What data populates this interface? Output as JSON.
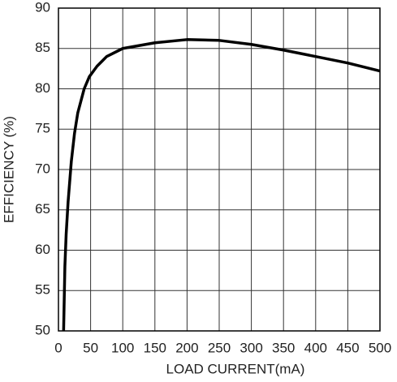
{
  "chart_data": {
    "type": "line",
    "x_label": "LOAD CURRENT(mA)",
    "y_label": "EFFICIENCY (%)",
    "xlim": [
      0,
      500
    ],
    "xticks": [
      0,
      50,
      100,
      150,
      200,
      250,
      300,
      350,
      400,
      450,
      500
    ],
    "ylim": [
      50,
      90
    ],
    "yticks": [
      50,
      55,
      60,
      65,
      70,
      75,
      80,
      85,
      90
    ],
    "grid": true,
    "series": [
      {
        "color": "#000000",
        "x": [
          8,
          10,
          12,
          15,
          20,
          25,
          30,
          40,
          48,
          60,
          75,
          100,
          150,
          200,
          250,
          300,
          350,
          400,
          450,
          500
        ],
        "values": [
          50,
          58,
          62,
          66,
          71,
          74.5,
          77,
          80,
          81.5,
          82.8,
          84,
          85,
          85.7,
          86.1,
          86,
          85.5,
          84.8,
          84,
          83.2,
          82.2
        ]
      }
    ]
  }
}
